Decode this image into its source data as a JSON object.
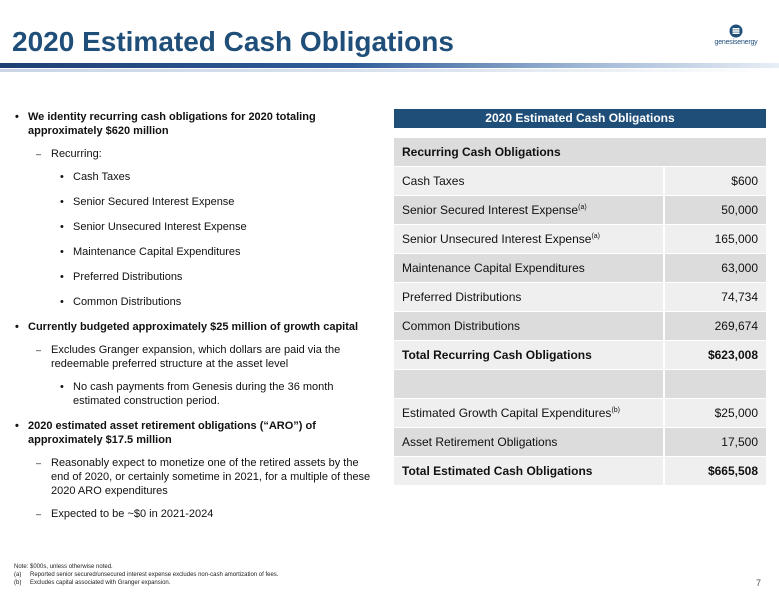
{
  "header": {
    "title": "2020 Estimated Cash Obligations",
    "logo_text": "genesisenergy",
    "brand_color": "#1f4e79"
  },
  "bullets": [
    {
      "level": 1,
      "text": "We identity recurring cash obligations for 2020 totaling approximately $620 million"
    },
    {
      "level": 2,
      "text": "Recurring:"
    },
    {
      "level": 3,
      "text": "Cash Taxes"
    },
    {
      "level": 3,
      "text": "Senior Secured Interest Expense"
    },
    {
      "level": 3,
      "text": "Senior Unsecured Interest Expense"
    },
    {
      "level": 3,
      "text": "Maintenance Capital Expenditures"
    },
    {
      "level": 3,
      "text": "Preferred Distributions"
    },
    {
      "level": 3,
      "text": "Common Distributions"
    },
    {
      "level": 1,
      "text": "Currently budgeted approximately $25 million of growth capital"
    },
    {
      "level": 2,
      "text": "Excludes Granger expansion, which dollars are paid via the redeemable preferred structure at the asset level"
    },
    {
      "level": 3,
      "text": "No cash payments from Genesis during the 36 month estimated construction period."
    },
    {
      "level": 1,
      "text": "2020 estimated asset retirement obligations (“ARO”) of approximately $17.5 million"
    },
    {
      "level": 2,
      "text": "Reasonably expect to monetize one of the retired assets by the end of 2020, or certainly sometime in 2021, for a multiple of these 2020 ARO expenditures"
    },
    {
      "level": 2,
      "text": "Expected to be ~$0 in 2021-2024"
    }
  ],
  "table": {
    "title": "2020 Estimated Cash Obligations",
    "section_header": "Recurring Cash Obligations",
    "rows": [
      {
        "label": "Cash Taxes",
        "sup": "",
        "value": "$600"
      },
      {
        "label": "Senior Secured Interest Expense",
        "sup": "(a)",
        "value": "50,000"
      },
      {
        "label": "Senior Unsecured Interest Expense",
        "sup": "(a)",
        "value": "165,000"
      },
      {
        "label": "Maintenance Capital Expenditures",
        "sup": "",
        "value": "63,000"
      },
      {
        "label": "Preferred Distributions",
        "sup": "",
        "value": "74,734"
      },
      {
        "label": "Common Distributions",
        "sup": "",
        "value": "269,674"
      }
    ],
    "total_recurring": {
      "label": "Total Recurring Cash Obligations",
      "value": "$623,008"
    },
    "growth": {
      "label": "Estimated Growth Capital Expenditures",
      "sup": "(b)",
      "value": "$25,000"
    },
    "aro": {
      "label": "Asset Retirement Obligations",
      "value": "17,500"
    },
    "total": {
      "label": "Total Estimated Cash Obligations",
      "value": "$665,508"
    }
  },
  "notes": {
    "note": "Note: $000s, unless otherwise noted.",
    "a_key": "(a)",
    "a": "Reported senior secured/unsecured interest expense excludes non-cash amortization of fees.",
    "b_key": "(b)",
    "b": "Excludes capital associated with Granger expansion."
  },
  "page_number": "7"
}
